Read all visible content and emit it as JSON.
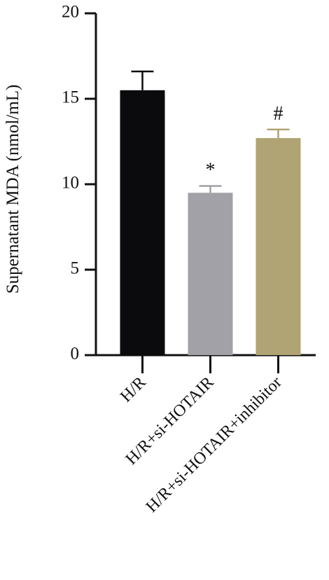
{
  "chart_data": {
    "type": "bar",
    "y_label": "Supernatant MDA (nmol/mL)",
    "categories": [
      "H/R",
      "H/R+si-HOTAIR",
      "H/R+si-HOTAIR+inhibitor"
    ],
    "values": [
      15.5,
      9.5,
      12.7
    ],
    "errors": [
      1.1,
      0.4,
      0.5
    ],
    "colors": [
      "#0b0b0d",
      "#a1a1a7",
      "#b0a475"
    ],
    "annotations": [
      null,
      "*",
      "#"
    ],
    "ylim": [
      0,
      20
    ],
    "yticks": [
      0,
      5,
      10,
      15,
      20
    ],
    "grid": false
  }
}
